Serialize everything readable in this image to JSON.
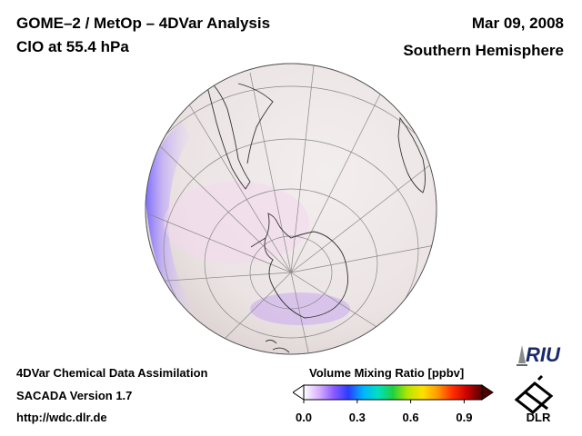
{
  "header": {
    "title_line1": "GOME–2 / MetOp – 4DVar Analysis",
    "title_line2": "ClO at 55.4 hPa",
    "date": "Mar 09, 2008",
    "region": "Southern Hemisphere"
  },
  "footer": {
    "line1": "4DVar Chemical Data Assimilation",
    "line2": "SACADA Version 1.7",
    "line3": "http://wdc.dlr.de"
  },
  "colorbar": {
    "title": "Volume Mixing Ratio [ppbv]",
    "tick_labels": [
      "0.0",
      "0.3",
      "0.6",
      "0.9"
    ],
    "range": [
      0.0,
      1.0
    ],
    "colors": [
      "#ffffff",
      "#d9b3ff",
      "#8c5cff",
      "#2a3cff",
      "#00b4ff",
      "#00e0c0",
      "#20d040",
      "#b4e600",
      "#ffe000",
      "#ff9a00",
      "#ff3000",
      "#c80000",
      "#500000"
    ]
  },
  "logos": {
    "riu": "RIU",
    "dlr": "DLR"
  },
  "map": {
    "projection": "orthographic, south pole view",
    "ocean_color": "#efe8e8"
  }
}
